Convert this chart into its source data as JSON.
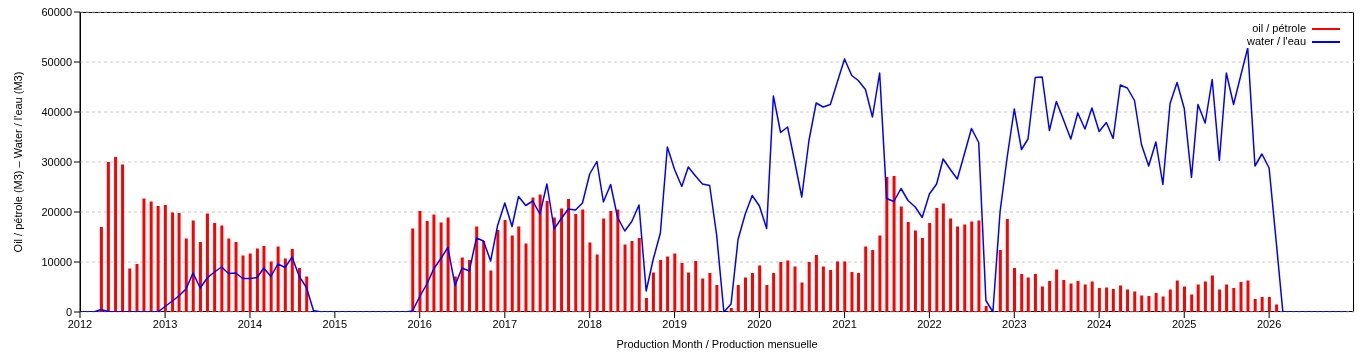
{
  "chart_data": {
    "type": "bar",
    "xlabel": "Production Month / Production mensuelle",
    "ylabel": "Oil / pétrole (M3)  –  Water / l'eau (M3)",
    "x": [
      "2012-01",
      "2012-02",
      "2012-03",
      "2012-04",
      "2012-05",
      "2012-06",
      "2012-07",
      "2012-08",
      "2012-09",
      "2012-10",
      "2012-11",
      "2012-12",
      "2013-01",
      "2013-02",
      "2013-03",
      "2013-04",
      "2013-05",
      "2013-06",
      "2013-07",
      "2013-08",
      "2013-09",
      "2013-10",
      "2013-11",
      "2013-12",
      "2014-01",
      "2014-02",
      "2014-03",
      "2014-04",
      "2014-05",
      "2014-06",
      "2014-07",
      "2014-08",
      "2014-09",
      "2014-10",
      "2014-11",
      "2014-12",
      "2015-01",
      "2015-02",
      "2015-03",
      "2015-04",
      "2015-05",
      "2015-06",
      "2015-07",
      "2015-08",
      "2015-09",
      "2015-10",
      "2015-11",
      "2015-12",
      "2016-01",
      "2016-02",
      "2016-03",
      "2016-04",
      "2016-05",
      "2016-06",
      "2016-07",
      "2016-08",
      "2016-09",
      "2016-10",
      "2016-11",
      "2016-12",
      "2017-01",
      "2017-02",
      "2017-03",
      "2017-04",
      "2017-05",
      "2017-06",
      "2017-07",
      "2017-08",
      "2017-09",
      "2017-10",
      "2017-11",
      "2017-12",
      "2018-01",
      "2018-02",
      "2018-03",
      "2018-04",
      "2018-05",
      "2018-06",
      "2018-07",
      "2018-08",
      "2018-09",
      "2018-10",
      "2018-11",
      "2018-12",
      "2019-01",
      "2019-02",
      "2019-03",
      "2019-04",
      "2019-05",
      "2019-06",
      "2019-07",
      "2019-08",
      "2019-09",
      "2019-10",
      "2019-11",
      "2019-12",
      "2020-01",
      "2020-02",
      "2020-03",
      "2020-04",
      "2020-05",
      "2020-06",
      "2020-07",
      "2020-08",
      "2020-09",
      "2020-10",
      "2020-11",
      "2020-12",
      "2021-01",
      "2021-02",
      "2021-03",
      "2021-04",
      "2021-05",
      "2021-06",
      "2021-07",
      "2021-08",
      "2021-09",
      "2021-10",
      "2021-11",
      "2021-12",
      "2022-01",
      "2022-02",
      "2022-03",
      "2022-04",
      "2022-05",
      "2022-06",
      "2022-07",
      "2022-08",
      "2022-09",
      "2022-10",
      "2022-11",
      "2022-12",
      "2023-01",
      "2023-02",
      "2023-03",
      "2023-04",
      "2023-05",
      "2023-06",
      "2023-07",
      "2023-08",
      "2023-09",
      "2023-10",
      "2023-11",
      "2023-12",
      "2024-01",
      "2024-02",
      "2024-03",
      "2024-04",
      "2024-05",
      "2024-06",
      "2024-07",
      "2024-08",
      "2024-09",
      "2024-10",
      "2024-11",
      "2024-12",
      "2025-01",
      "2025-02",
      "2025-03",
      "2025-04",
      "2025-05",
      "2025-06",
      "2025-07",
      "2025-08",
      "2025-09",
      "2025-10",
      "2025-11",
      "2025-12",
      "2026-01",
      "2026-02",
      "2026-03",
      "2026-04",
      "2026-05",
      "2026-06",
      "2026-07",
      "2026-08",
      "2026-09",
      "2026-10",
      "2026-11",
      "2026-12"
    ],
    "series": [
      {
        "name": "oil / pétrole",
        "color": "#ff0000",
        "values": [
          0,
          0,
          0,
          17000,
          30000,
          31000,
          29500,
          8700,
          9600,
          22700,
          22100,
          21200,
          21400,
          19900,
          19800,
          14700,
          18300,
          14000,
          19700,
          17800,
          17300,
          14700,
          14000,
          11300,
          11700,
          12700,
          13200,
          10100,
          13100,
          10700,
          12600,
          8800,
          7100,
          0,
          0,
          0,
          0,
          0,
          0,
          0,
          0,
          0,
          0,
          0,
          0,
          0,
          0,
          16700,
          20200,
          18200,
          19500,
          17900,
          18900,
          7100,
          10900,
          10400,
          17100,
          14200,
          8300,
          16400,
          18400,
          15300,
          17100,
          13700,
          22900,
          23500,
          22200,
          18900,
          20700,
          22600,
          19600,
          20500,
          13900,
          11500,
          18700,
          20200,
          20500,
          13500,
          14200,
          14800,
          2800,
          7900,
          10400,
          11100,
          11700,
          9800,
          7900,
          10200,
          6700,
          7800,
          5400,
          0,
          800,
          5400,
          6900,
          7800,
          9300,
          5400,
          7800,
          10000,
          10300,
          9100,
          5900,
          10000,
          11400,
          9100,
          8400,
          10100,
          10100,
          8000,
          7800,
          13100,
          12400,
          15300,
          27000,
          27200,
          21100,
          18000,
          16300,
          14800,
          17800,
          20800,
          21700,
          18700,
          17100,
          17500,
          18100,
          18300,
          1200,
          0,
          12400,
          18600,
          8800,
          7600,
          6900,
          7600,
          5100,
          6200,
          8500,
          6400,
          5700,
          6200,
          5500,
          6100,
          4800,
          4900,
          4600,
          5300,
          4500,
          4100,
          3300,
          3200,
          3800,
          3100,
          4500,
          6300,
          5100,
          3500,
          5500,
          6100,
          7300,
          4500,
          5500,
          4800,
          6000,
          6300,
          2600,
          3000,
          3000,
          1500,
          0,
          0,
          0,
          0,
          0,
          0,
          0,
          0,
          0,
          0
        ]
      },
      {
        "name": "water / l'eau",
        "type": "line",
        "color": "#0000ff",
        "values": [
          0,
          0,
          0,
          500,
          100,
          0,
          0,
          0,
          0,
          0,
          0,
          0,
          1100,
          2200,
          3200,
          4600,
          7800,
          4800,
          6800,
          8000,
          9000,
          7700,
          7800,
          6700,
          6700,
          6900,
          8800,
          7100,
          9600,
          8900,
          11000,
          7100,
          4900,
          300,
          0,
          0,
          0,
          0,
          0,
          0,
          0,
          0,
          0,
          0,
          0,
          0,
          0,
          200,
          3100,
          5600,
          8600,
          10700,
          12900,
          5300,
          8800,
          8200,
          14800,
          14200,
          10200,
          17300,
          21800,
          17100,
          23100,
          21300,
          22200,
          19600,
          25600,
          16600,
          18700,
          20600,
          20400,
          21800,
          27600,
          30100,
          22000,
          25500,
          18900,
          16200,
          18100,
          21400,
          4200,
          10500,
          15800,
          33000,
          28500,
          25100,
          29000,
          27200,
          25600,
          25300,
          15400,
          0,
          1600,
          14500,
          19600,
          23300,
          21200,
          16700,
          43200,
          35900,
          37000,
          30000,
          23000,
          34300,
          41800,
          41000,
          41500,
          46000,
          50600,
          47300,
          46300,
          44500,
          39000,
          47800,
          22700,
          22100,
          24700,
          22300,
          21000,
          18900,
          23600,
          25600,
          30600,
          28500,
          26600,
          31700,
          36700,
          33900,
          2300,
          0,
          20100,
          30800,
          40600,
          32500,
          34600,
          46900,
          47000,
          36300,
          42100,
          38400,
          34600,
          39800,
          36600,
          40800,
          36100,
          37900,
          34700,
          45400,
          44800,
          42300,
          33500,
          29200,
          34000,
          25500,
          41700,
          45900,
          40700,
          26900,
          41500,
          37800,
          46500,
          30300,
          47800,
          41500,
          47300,
          52800,
          29200,
          31600,
          28800,
          13800,
          0,
          0,
          0,
          0,
          0,
          0,
          0,
          0,
          0,
          0
        ]
      }
    ],
    "xlim": [
      "2012-01",
      "2027-01"
    ],
    "xticks": [
      "2012",
      "2013",
      "2014",
      "2015",
      "2016",
      "2017",
      "2018",
      "2019",
      "2020",
      "2021",
      "2022",
      "2023",
      "2024",
      "2025",
      "2026"
    ],
    "ylim": [
      0,
      60000
    ],
    "yticks": [
      0,
      10000,
      20000,
      30000,
      40000,
      50000,
      60000
    ],
    "grid": "y",
    "legend": "top right",
    "marker": "none"
  }
}
